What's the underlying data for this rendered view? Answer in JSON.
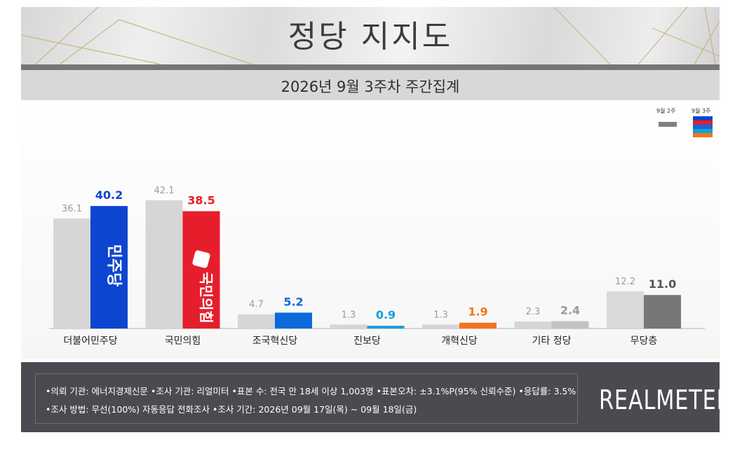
{
  "header": {
    "title": "정당 지지도",
    "subtitle": "2026년 9월 3주차 주간집계"
  },
  "colors": {
    "prev_bar": "#d6d6d6",
    "label_prev": "#9b9b9b",
    "parties": [
      "#0c45cf",
      "#e61e2b",
      "#0a6ad9",
      "#12a0d8",
      "#f6731c",
      "#c3c3c3",
      "#777777"
    ],
    "value_labels": [
      "#0c45cf",
      "#e61e2b",
      "#0a6ad9",
      "#12a0d8",
      "#f6731c",
      "#999999",
      "#555555"
    ]
  },
  "chart_data": {
    "type": "bar",
    "title": "정당 지지도",
    "subtitle": "2026년 9월 3주차 주간집계",
    "categories": [
      "더불어민주당",
      "국민의힘",
      "조국혁신당",
      "진보당",
      "개혁신당",
      "기타 정당",
      "무당층"
    ],
    "series": [
      {
        "name": "9월 2주",
        "values": [
          36.1,
          42.1,
          4.7,
          1.3,
          1.3,
          2.3,
          12.2
        ]
      },
      {
        "name": "9월 3주",
        "values": [
          40.2,
          38.5,
          5.2,
          0.9,
          1.9,
          2.4,
          11.0
        ]
      }
    ],
    "value_labels": {
      "prev": [
        "36.1",
        "42.1",
        "4.7",
        "1.3",
        "1.3",
        "2.3",
        "12.2"
      ],
      "curr": [
        "40.2",
        "38.5",
        "5.2",
        "0.9",
        "1.9",
        "2.4",
        "11.0"
      ]
    },
    "ylim": [
      0,
      45
    ],
    "grid": false,
    "legend": "top-right",
    "bar_text": {
      "dpk": "민주당",
      "ppp": "국민의힘"
    }
  },
  "legend": {
    "prev": "9월 2주",
    "curr": "9월 3주"
  },
  "footer": {
    "line1": "•의뢰 기관: 에너지경제신문  •조사 기관: 리얼미터 •표본 수: 전국 만 18세 이상 1,003명 •표본오차: ±3.1%P(95% 신뢰수준) •응답률: 3.5%",
    "line2": "•조사 방법: 무선(100%) 자동응답 전화조사 •조사 기간: 2026년 09월 17일(목) ~ 09월 18일(금)",
    "brand": "REALMETER"
  }
}
